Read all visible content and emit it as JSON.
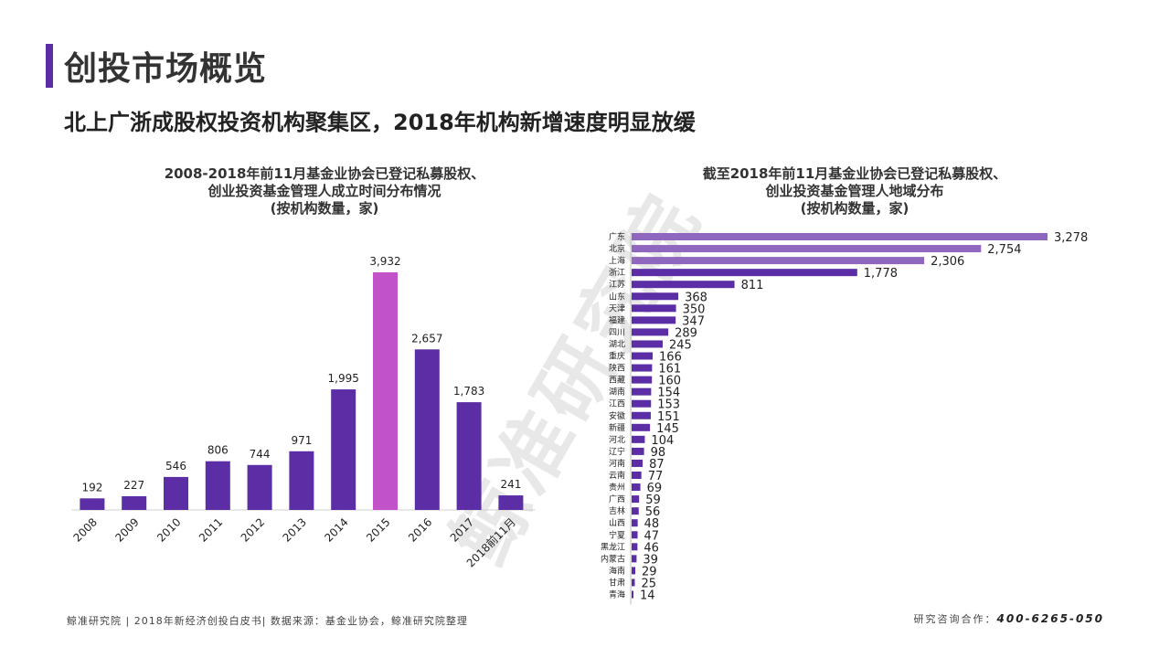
{
  "header": {
    "title": "创投市场概览",
    "subtitle": "北上广浙成股权投资机构聚集区，2018年机构新增速度明显放缓"
  },
  "watermark": "鲸准研究院",
  "colors": {
    "accent": "#5b2ea6",
    "bar": "#5b2ea6",
    "highlight_bar": "#c152c8",
    "top_bar": "#8f67bf"
  },
  "chart_data": [
    {
      "type": "bar",
      "title_lines": [
        "2008-2018年前11月基金业协会已登记私募股权、",
        "创业投资基金管理人成立时间分布情况",
        "(按机构数量，家)"
      ],
      "categories": [
        "2008",
        "2009",
        "2010",
        "2011",
        "2012",
        "2013",
        "2014",
        "2015",
        "2016",
        "2017",
        "2018前11月"
      ],
      "values": [
        192,
        227,
        546,
        806,
        744,
        971,
        1995,
        3932,
        2657,
        1783,
        241
      ],
      "highlight": "2015",
      "ylim": [
        0,
        3932
      ]
    },
    {
      "type": "bar",
      "orientation": "horizontal",
      "title_lines": [
        "截至2018年前11月基金业协会已登记私募股权、",
        "创业投资基金管理人地域分布",
        "(按机构数量，家)"
      ],
      "categories": [
        "广东",
        "北京",
        "上海",
        "浙江",
        "江苏",
        "山东",
        "天津",
        "福建",
        "四川",
        "湖北",
        "重庆",
        "陕西",
        "西藏",
        "湖南",
        "江西",
        "安徽",
        "新疆",
        "河北",
        "辽宁",
        "河南",
        "云南",
        "贵州",
        "广西",
        "吉林",
        "山西",
        "宁夏",
        "黑龙江",
        "内蒙古",
        "海南",
        "甘肃",
        "青海"
      ],
      "values": [
        3278,
        2754,
        2306,
        1778,
        811,
        368,
        350,
        347,
        289,
        245,
        166,
        161,
        160,
        154,
        153,
        151,
        145,
        104,
        98,
        87,
        77,
        69,
        59,
        56,
        48,
        47,
        46,
        39,
        29,
        25,
        14
      ],
      "ylim": [
        0,
        3278
      ]
    }
  ],
  "footer": {
    "source": "鲸准研究院 | 2018年新经济创投白皮书| 数据来源：基金业协会，鲸准研究院整理",
    "contact_label": "研究咨询合作：",
    "phone": "400-6265-050"
  }
}
